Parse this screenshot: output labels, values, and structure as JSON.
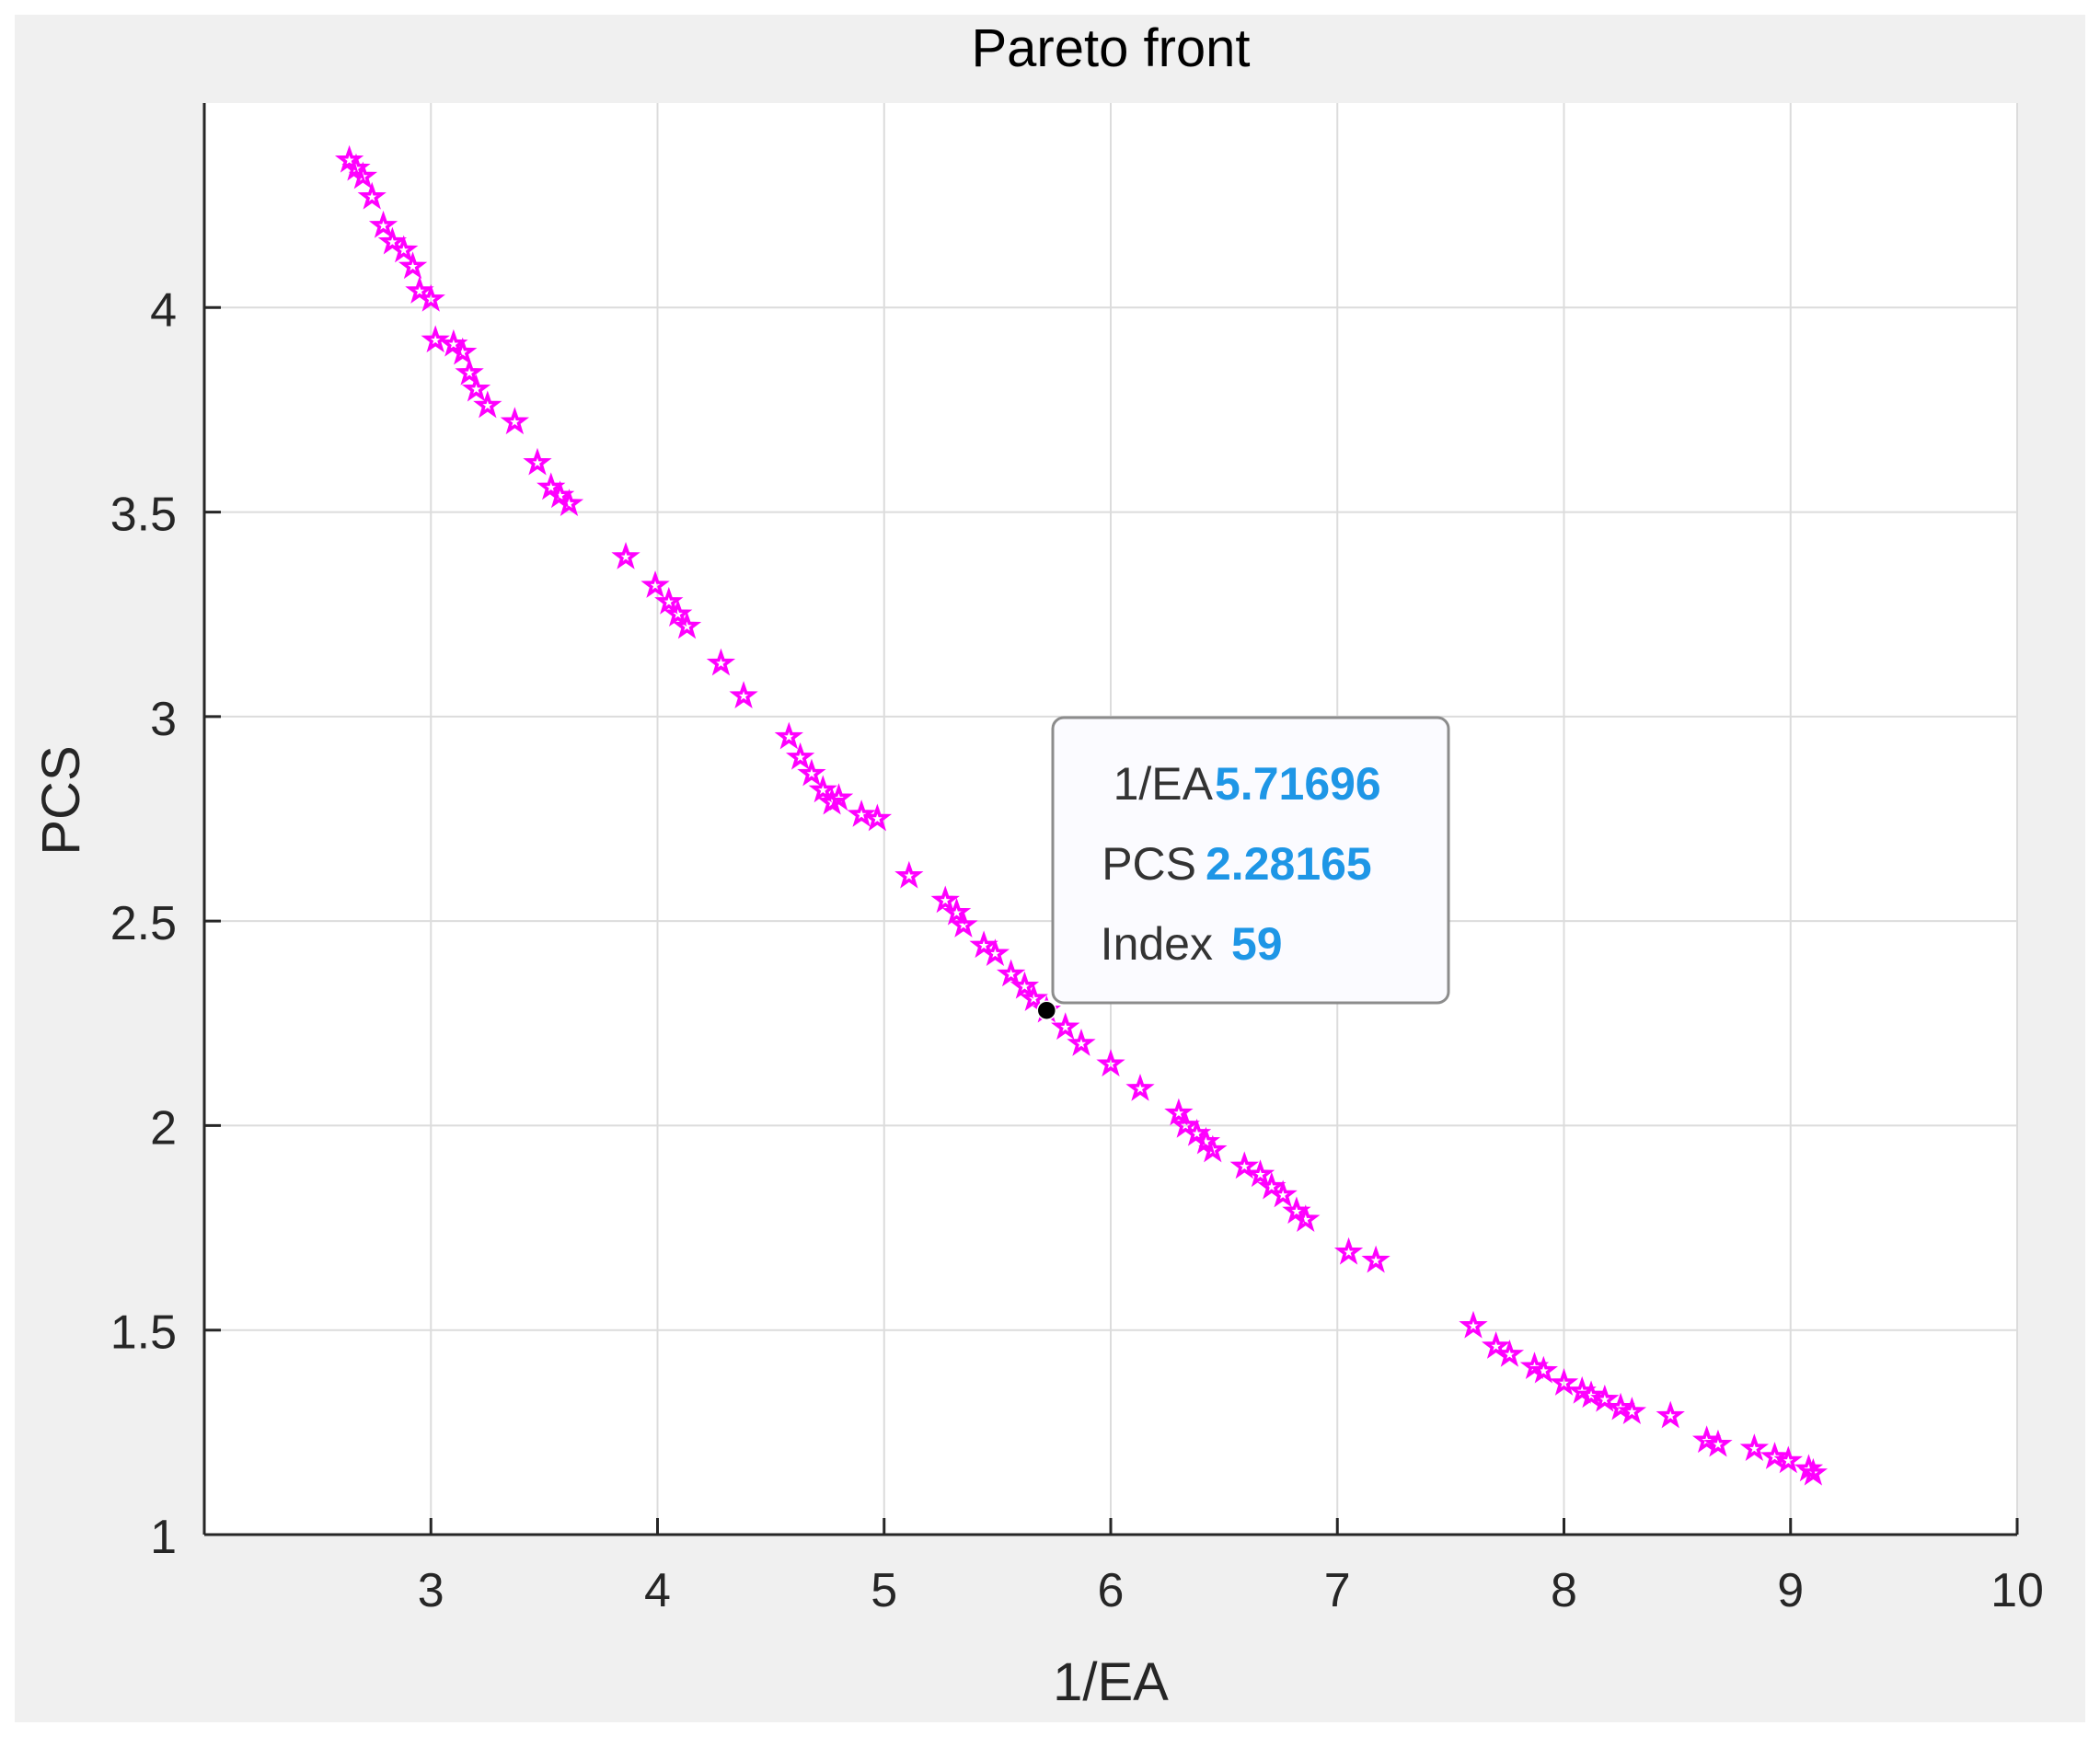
{
  "chart_data": {
    "type": "scatter",
    "title": "Pareto front",
    "xlabel": "1/EA",
    "ylabel": "PCS",
    "xlim": [
      2.0,
      10.0
    ],
    "ylim": [
      1.0,
      4.5
    ],
    "xticks": [
      3,
      4,
      5,
      6,
      7,
      8,
      9,
      10
    ],
    "yticks": [
      1,
      1.5,
      2,
      2.5,
      3,
      3.5,
      4
    ],
    "xtick_labels": [
      "3",
      "4",
      "5",
      "6",
      "7",
      "8",
      "9",
      "10"
    ],
    "ytick_labels": [
      "1",
      "1.5",
      "2",
      "2.5",
      "3",
      "3.5",
      "4"
    ],
    "grid": true,
    "marker": "pentagram",
    "marker_color": "#ff00ff",
    "points": [
      [
        2.64,
        4.36
      ],
      [
        2.67,
        4.34
      ],
      [
        2.7,
        4.32
      ],
      [
        2.74,
        4.27
      ],
      [
        2.79,
        4.2
      ],
      [
        2.83,
        4.16
      ],
      [
        2.88,
        4.14
      ],
      [
        2.92,
        4.1
      ],
      [
        2.95,
        4.04
      ],
      [
        3.0,
        4.02
      ],
      [
        3.02,
        3.92
      ],
      [
        3.1,
        3.91
      ],
      [
        3.14,
        3.89
      ],
      [
        3.17,
        3.84
      ],
      [
        3.2,
        3.8
      ],
      [
        3.25,
        3.76
      ],
      [
        3.37,
        3.72
      ],
      [
        3.47,
        3.62
      ],
      [
        3.53,
        3.56
      ],
      [
        3.57,
        3.54
      ],
      [
        3.61,
        3.52
      ],
      [
        3.86,
        3.39
      ],
      [
        3.99,
        3.32
      ],
      [
        4.05,
        3.28
      ],
      [
        4.09,
        3.25
      ],
      [
        4.13,
        3.22
      ],
      [
        4.28,
        3.13
      ],
      [
        4.38,
        3.05
      ],
      [
        4.58,
        2.95
      ],
      [
        4.63,
        2.9
      ],
      [
        4.68,
        2.86
      ],
      [
        4.73,
        2.82
      ],
      [
        4.77,
        2.79
      ],
      [
        4.8,
        2.8
      ],
      [
        4.9,
        2.76
      ],
      [
        4.97,
        2.75
      ],
      [
        5.11,
        2.61
      ],
      [
        5.27,
        2.55
      ],
      [
        5.32,
        2.52
      ],
      [
        5.35,
        2.49
      ],
      [
        5.44,
        2.44
      ],
      [
        5.49,
        2.42
      ],
      [
        5.56,
        2.37
      ],
      [
        5.62,
        2.34
      ],
      [
        5.66,
        2.31
      ],
      [
        5.71696,
        2.28165
      ],
      [
        5.8,
        2.24
      ],
      [
        5.87,
        2.2
      ],
      [
        6.0,
        2.15
      ],
      [
        6.13,
        2.09
      ],
      [
        6.3,
        2.03
      ],
      [
        6.33,
        2.0
      ],
      [
        6.38,
        1.98
      ],
      [
        6.42,
        1.96
      ],
      [
        6.45,
        1.94
      ],
      [
        6.59,
        1.9
      ],
      [
        6.66,
        1.88
      ],
      [
        6.71,
        1.85
      ],
      [
        6.76,
        1.83
      ],
      [
        6.82,
        1.79
      ],
      [
        6.86,
        1.77
      ],
      [
        7.05,
        1.69
      ],
      [
        7.17,
        1.67
      ],
      [
        7.6,
        1.51
      ],
      [
        7.7,
        1.46
      ],
      [
        7.76,
        1.44
      ],
      [
        7.87,
        1.41
      ],
      [
        7.91,
        1.4
      ],
      [
        8.0,
        1.37
      ],
      [
        8.08,
        1.35
      ],
      [
        8.12,
        1.34
      ],
      [
        8.18,
        1.33
      ],
      [
        8.25,
        1.31
      ],
      [
        8.3,
        1.3
      ],
      [
        8.47,
        1.29
      ],
      [
        8.63,
        1.23
      ],
      [
        8.68,
        1.22
      ],
      [
        8.84,
        1.21
      ],
      [
        8.93,
        1.19
      ],
      [
        8.99,
        1.18
      ],
      [
        9.08,
        1.16
      ],
      [
        9.1,
        1.15
      ]
    ],
    "highlight_point": [
      5.71696,
      2.28165
    ],
    "datatip": {
      "x_label": "1/EA",
      "x_value": "5.71696",
      "y_label": "PCS",
      "y_value": "2.28165",
      "index_label": "Index",
      "index_value": "59"
    },
    "colors": {
      "background": "#f0f0f0",
      "axes_background": "#ffffff",
      "grid": "#dcdcdc",
      "axis": "#262626",
      "marker": "#ff00ff",
      "datatip_value": "#1e96e6",
      "datatip_label": "#333333"
    }
  }
}
